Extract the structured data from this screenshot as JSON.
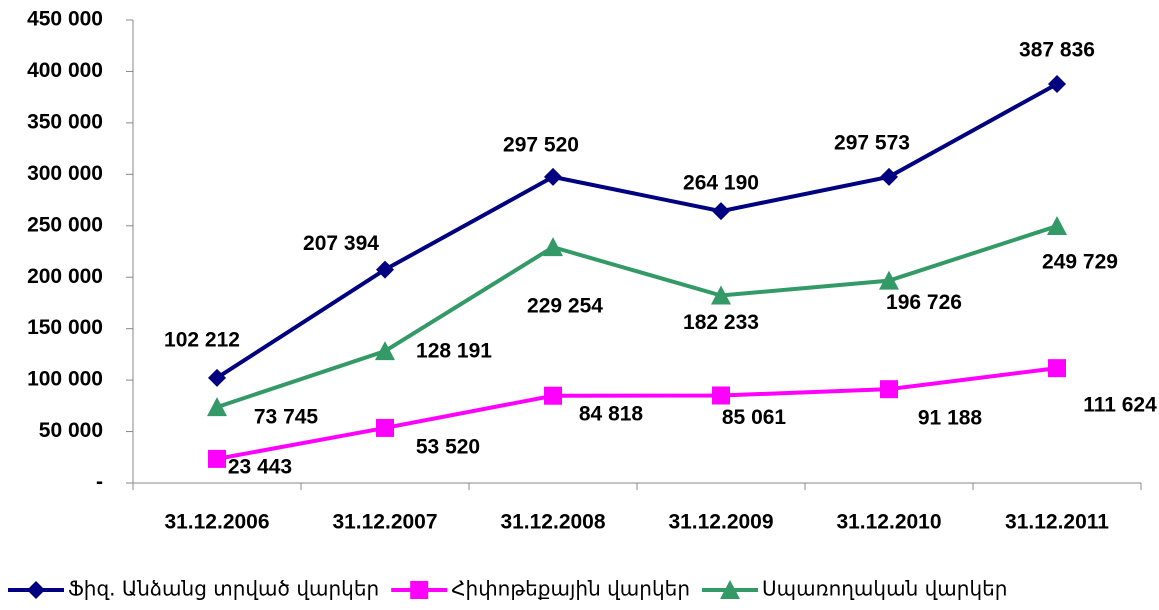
{
  "chart_data": {
    "type": "line",
    "categories": [
      "31.12.2006",
      "31.12.2007",
      "31.12.2008",
      "31.12.2009",
      "31.12.2010",
      "31.12.2011"
    ],
    "series": [
      {
        "name": "Ֆիզ. Անձանց տրված վարկեր",
        "color": "#000080",
        "marker": "diamond",
        "values": [
          102212,
          207394,
          297520,
          264190,
          297573,
          387836
        ],
        "value_labels": [
          "102 212",
          "207 394",
          "297 520",
          "264 190",
          "297 573",
          "387 836"
        ]
      },
      {
        "name": "Հիփոթեքային վարկեր",
        "color": "#ff00ff",
        "marker": "square",
        "values": [
          23443,
          53520,
          84818,
          85061,
          91188,
          111624
        ],
        "value_labels": [
          "23 443",
          "53 520",
          "84 818",
          "85 061",
          "91 188",
          "111 624"
        ]
      },
      {
        "name": "Սպառողական վարկեր",
        "color": "#339966",
        "marker": "triangle",
        "values": [
          73745,
          128191,
          229254,
          182233,
          196726,
          249729
        ],
        "value_labels": [
          "73 745",
          "128 191",
          "229 254",
          "182 233",
          "196 726",
          "249 729"
        ]
      }
    ],
    "ylim": [
      0,
      450000
    ],
    "yticks": [
      {
        "value": 0,
        "label": "-"
      },
      {
        "value": 50000,
        "label": "50 000"
      },
      {
        "value": 100000,
        "label": "100 000"
      },
      {
        "value": 150000,
        "label": "150 000"
      },
      {
        "value": 200000,
        "label": "200 000"
      },
      {
        "value": 250000,
        "label": "250 000"
      },
      {
        "value": 300000,
        "label": "300 000"
      },
      {
        "value": 350000,
        "label": "350 000"
      },
      {
        "value": 400000,
        "label": "400 000"
      },
      {
        "value": 450000,
        "label": "450 000"
      }
    ],
    "grid": false,
    "legend": "bottom"
  }
}
